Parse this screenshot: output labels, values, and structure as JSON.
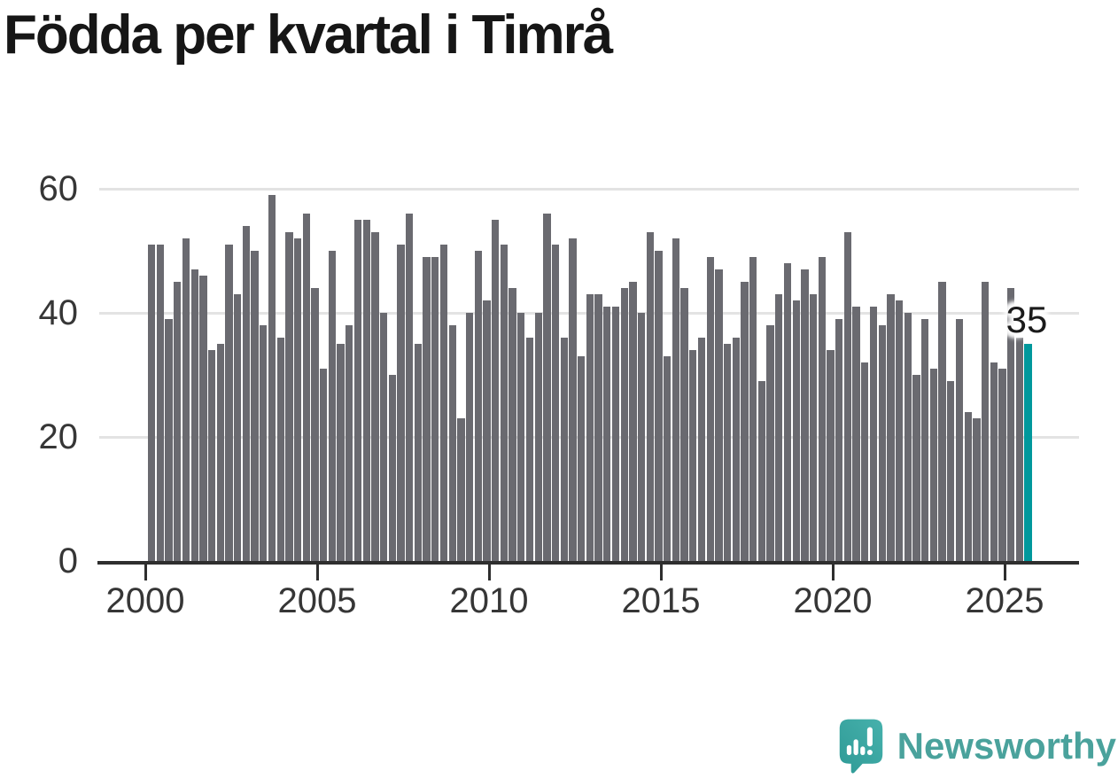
{
  "title": "Födda per kvartal i Timrå",
  "annotation": {
    "text": "35"
  },
  "branding": {
    "name": "Newsworthy",
    "icon": "newsworthy-speech-bubble-bar-chart-icon"
  },
  "colors": {
    "bar": "#6a6a70",
    "highlight": "#00989c",
    "grid": "#e3e3e3",
    "axis": "#2e2e2e",
    "tick_label": "#363636",
    "title": "#161616",
    "annotation_text": "#1b1b1b",
    "annotation_halo": "#ffffff",
    "brand_text": "#4aa29c",
    "brand_icon_dark": "#2f9a96",
    "brand_icon_light": "#46b1ac",
    "background": "#ffffff"
  },
  "chart_data": {
    "type": "bar",
    "title": "Födda per kvartal i Timrå",
    "xlabel": "",
    "ylabel": "",
    "ylim": [
      0,
      60
    ],
    "yticks": [
      "0",
      "20",
      "40",
      "60"
    ],
    "ytick_values": [
      0,
      20,
      40,
      60
    ],
    "xticks": [
      "2000",
      "2005",
      "2010",
      "2015",
      "2020",
      "2025"
    ],
    "grid": "horizontal",
    "legend": "none",
    "highlight_index": 102,
    "highlight_label": "35",
    "categories": [
      "2000-Q1",
      "2000-Q2",
      "2000-Q3",
      "2000-Q4",
      "2001-Q1",
      "2001-Q2",
      "2001-Q3",
      "2001-Q4",
      "2002-Q1",
      "2002-Q2",
      "2002-Q3",
      "2002-Q4",
      "2003-Q1",
      "2003-Q2",
      "2003-Q3",
      "2003-Q4",
      "2004-Q1",
      "2004-Q2",
      "2004-Q3",
      "2004-Q4",
      "2005-Q1",
      "2005-Q2",
      "2005-Q3",
      "2005-Q4",
      "2006-Q1",
      "2006-Q2",
      "2006-Q3",
      "2006-Q4",
      "2007-Q1",
      "2007-Q2",
      "2007-Q3",
      "2007-Q4",
      "2008-Q1",
      "2008-Q2",
      "2008-Q3",
      "2008-Q4",
      "2009-Q1",
      "2009-Q2",
      "2009-Q3",
      "2009-Q4",
      "2010-Q1",
      "2010-Q2",
      "2010-Q3",
      "2010-Q4",
      "2011-Q1",
      "2011-Q2",
      "2011-Q3",
      "2011-Q4",
      "2012-Q1",
      "2012-Q2",
      "2012-Q3",
      "2012-Q4",
      "2013-Q1",
      "2013-Q2",
      "2013-Q3",
      "2013-Q4",
      "2014-Q1",
      "2014-Q2",
      "2014-Q3",
      "2014-Q4",
      "2015-Q1",
      "2015-Q2",
      "2015-Q3",
      "2015-Q4",
      "2016-Q1",
      "2016-Q2",
      "2016-Q3",
      "2016-Q4",
      "2017-Q1",
      "2017-Q2",
      "2017-Q3",
      "2017-Q4",
      "2018-Q1",
      "2018-Q2",
      "2018-Q3",
      "2018-Q4",
      "2019-Q1",
      "2019-Q2",
      "2019-Q3",
      "2019-Q4",
      "2020-Q1",
      "2020-Q2",
      "2020-Q3",
      "2020-Q4",
      "2021-Q1",
      "2021-Q2",
      "2021-Q3",
      "2021-Q4",
      "2022-Q1",
      "2022-Q2",
      "2022-Q3",
      "2022-Q4",
      "2023-Q1",
      "2023-Q2",
      "2023-Q3",
      "2023-Q4",
      "2024-Q1",
      "2024-Q2",
      "2024-Q3",
      "2024-Q4",
      "2025-Q1",
      "2025-Q2",
      "2025-Q3"
    ],
    "values": [
      51,
      51,
      39,
      45,
      52,
      47,
      46,
      34,
      35,
      51,
      43,
      54,
      50,
      38,
      59,
      36,
      53,
      52,
      56,
      44,
      31,
      50,
      35,
      38,
      55,
      55,
      53,
      40,
      30,
      51,
      56,
      35,
      49,
      49,
      51,
      38,
      23,
      40,
      50,
      42,
      55,
      51,
      44,
      40,
      36,
      40,
      56,
      51,
      36,
      52,
      33,
      43,
      43,
      41,
      41,
      44,
      45,
      40,
      53,
      50,
      33,
      52,
      44,
      34,
      36,
      49,
      47,
      35,
      36,
      45,
      49,
      29,
      38,
      43,
      48,
      42,
      47,
      43,
      49,
      34,
      39,
      53,
      41,
      32,
      41,
      38,
      43,
      42,
      40,
      30,
      39,
      31,
      45,
      29,
      39,
      24,
      23,
      45,
      32,
      31,
      44,
      36,
      35
    ]
  }
}
